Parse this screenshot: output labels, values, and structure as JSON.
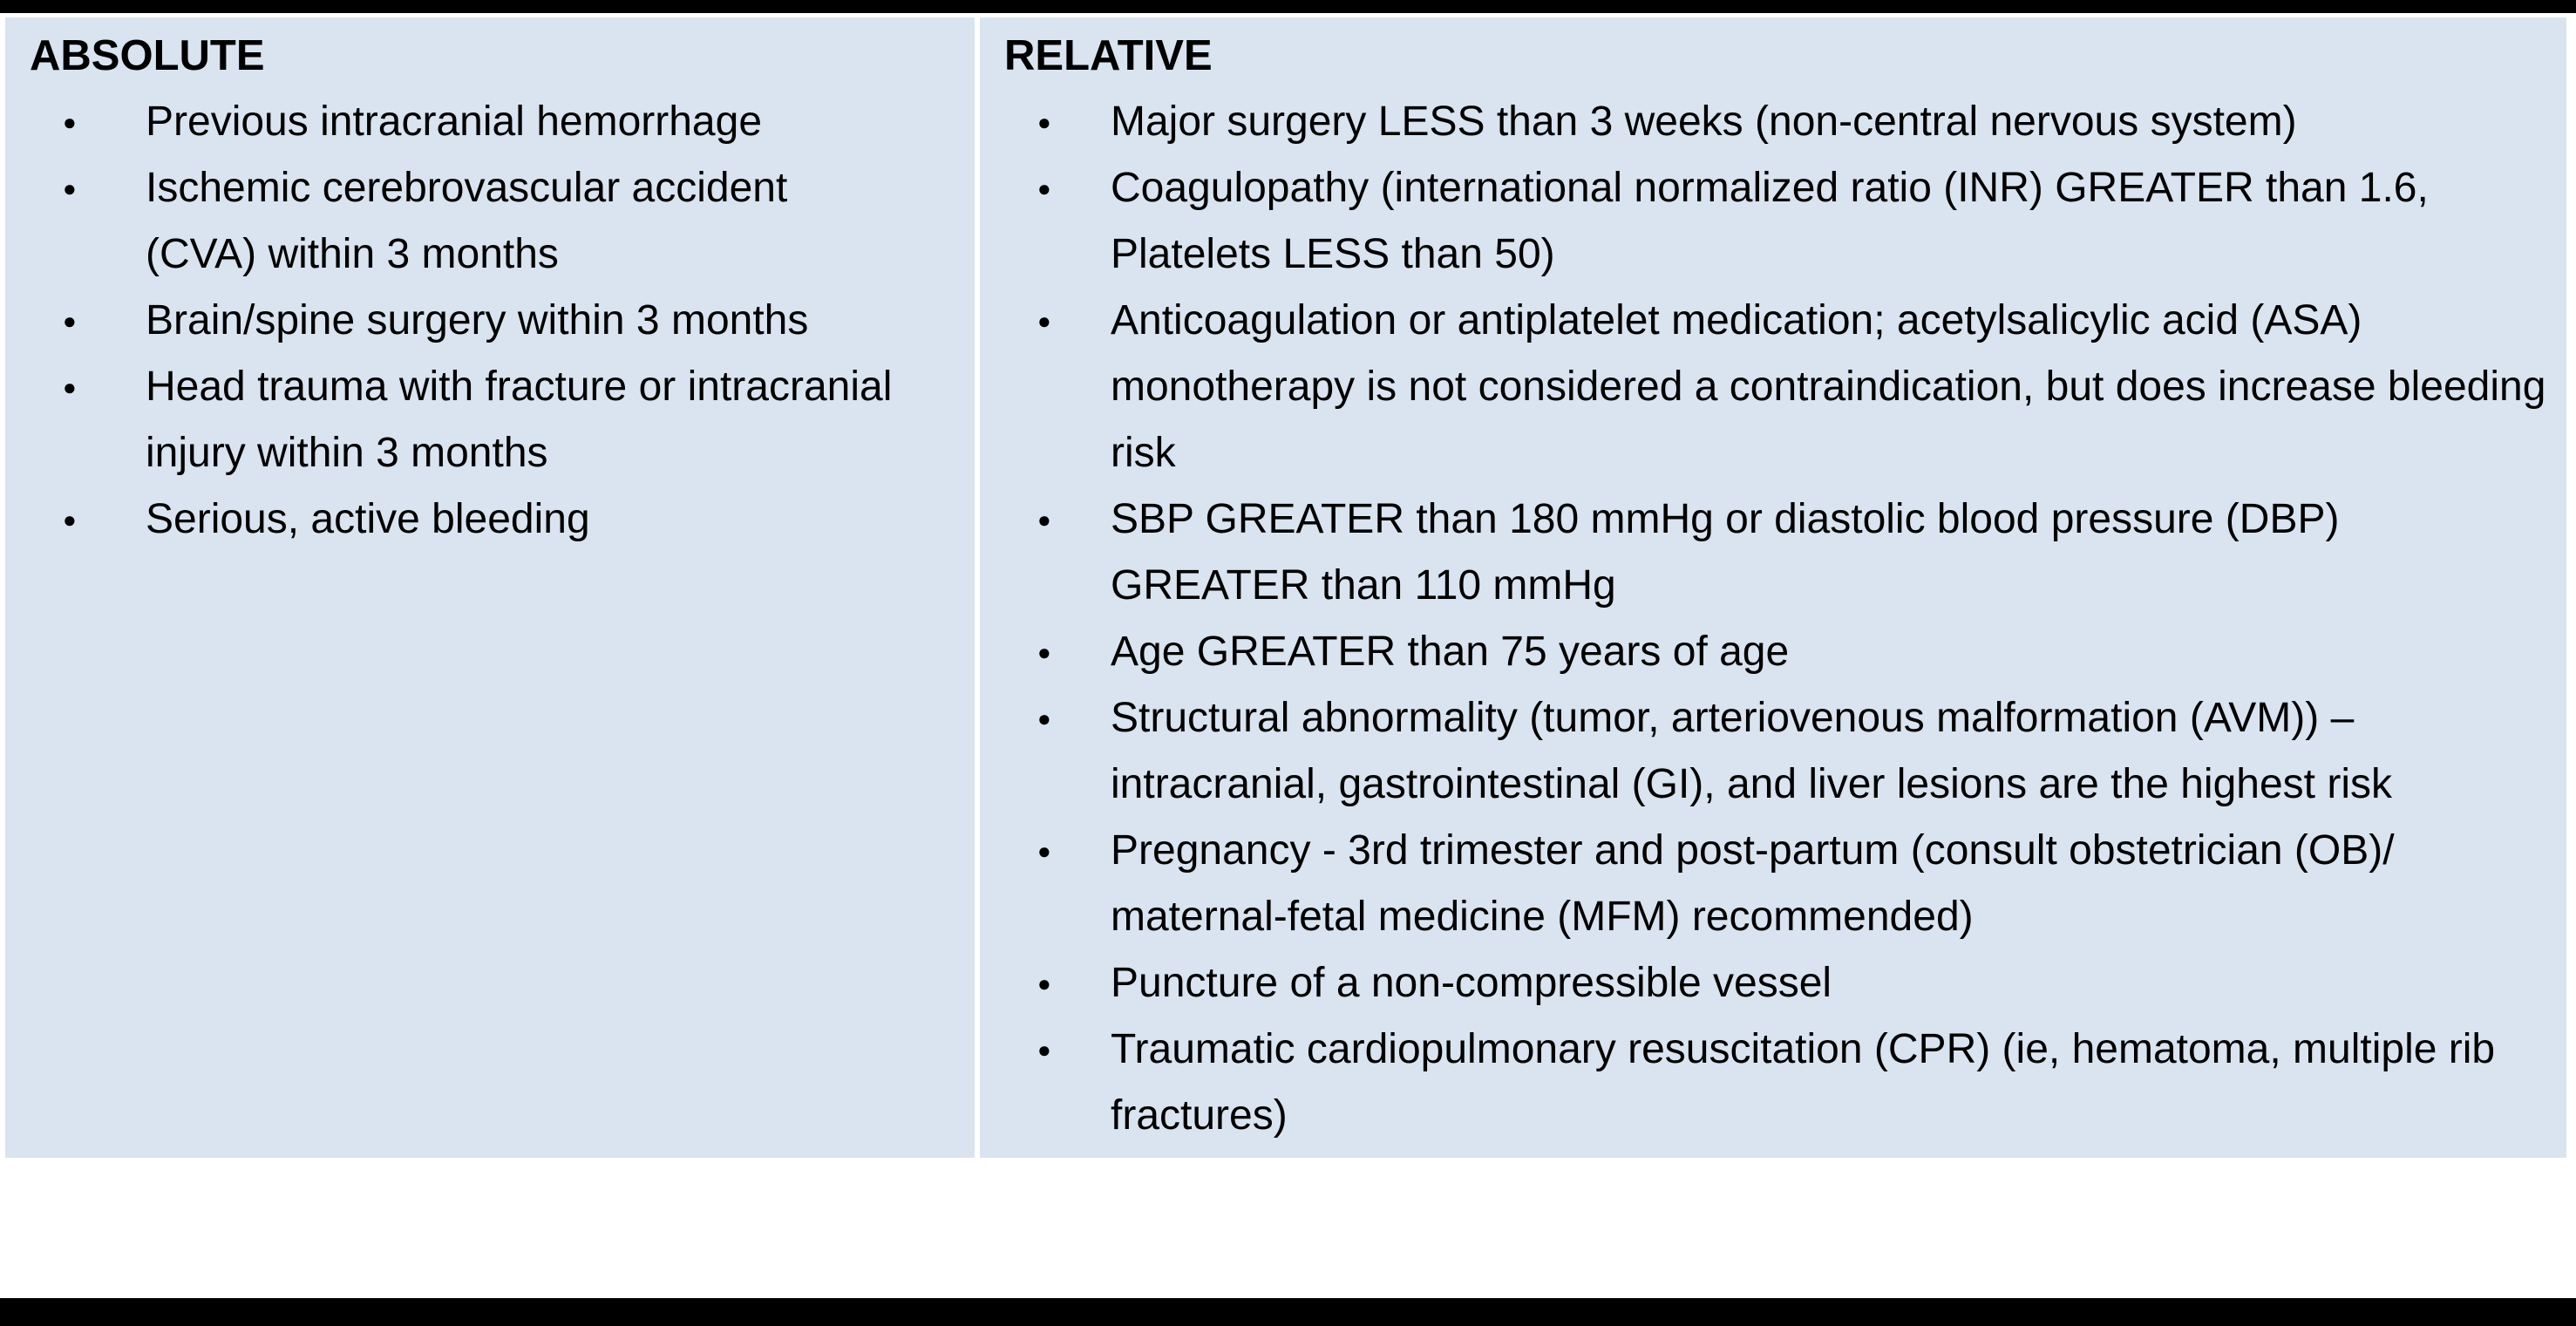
{
  "table": {
    "columns": [
      {
        "header": "ABSOLUTE",
        "items": [
          "Previous intracranial hemorrhage",
          "Ischemic cerebrovascular accident (CVA) within 3 months",
          "Brain/spine surgery within 3 months",
          "Head trauma with fracture or intracranial injury within 3 months",
          "Serious, active bleeding"
        ]
      },
      {
        "header": "RELATIVE",
        "items": [
          "Major surgery LESS than 3 weeks (non-central nervous system)",
          "Coagulopathy (international normalized ratio (INR) GREATER than 1.6, Platelets LESS than 50)",
          "Anticoagulation or antiplatelet medication; acetylsalicylic acid (ASA) monotherapy is not considered a contraindication, but does increase bleeding risk",
          "SBP GREATER than 180 mmHg or diastolic blood pressure (DBP) GREATER than 110 mmHg",
          "Age GREATER than 75 years of age",
          "Structural abnormality (tumor, arteriovenous malformation (AVM)) –intracranial, gastrointestinal (GI), and liver lesions are the highest risk",
          "Pregnancy - 3rd trimester and post-partum (consult obstetrician (OB)/ maternal-fetal medicine (MFM) recommended)",
          "Puncture of a non-compressible vessel",
          "Traumatic cardiopulmonary resuscitation (CPR) (ie, hematoma, multiple rib fractures)"
        ]
      }
    ],
    "bullet_glyph": "●",
    "colors": {
      "cell_background": "#dae3f0",
      "bar": "#000000",
      "text": "#000000",
      "page_background": "#ffffff"
    }
  }
}
